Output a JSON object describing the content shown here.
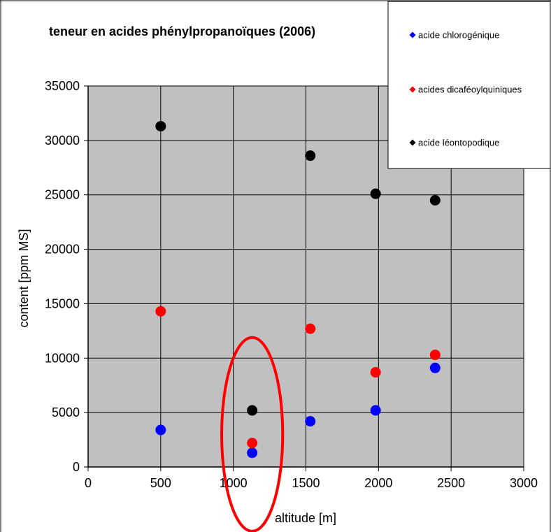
{
  "chart_data": {
    "type": "scatter",
    "title": "teneur en acides phénylpropanoïques  (2006)",
    "xlabel": "altitude  [m]",
    "ylabel": "content  [ppm MS]",
    "xlim": [
      0,
      3000
    ],
    "ylim": [
      0,
      35000
    ],
    "x_ticks": [
      0,
      500,
      1000,
      1500,
      2000,
      2500,
      3000
    ],
    "y_ticks": [
      0,
      5000,
      10000,
      15000,
      20000,
      25000,
      30000,
      35000
    ],
    "grid": true,
    "plot_background": "#c0c0c0",
    "legend_position": "top-right",
    "series": [
      {
        "name": "acide chlorogénique",
        "color": "#0000ff",
        "points": [
          [
            500,
            3400
          ],
          [
            1130,
            1300
          ],
          [
            1530,
            4200
          ],
          [
            1980,
            5200
          ],
          [
            2390,
            9100
          ]
        ]
      },
      {
        "name": "acides dicaféoylquiniques",
        "color": "#ff0000",
        "points": [
          [
            500,
            14300
          ],
          [
            1130,
            2200
          ],
          [
            1530,
            12700
          ],
          [
            1980,
            8700
          ],
          [
            2390,
            10300
          ]
        ]
      },
      {
        "name": "acide léontopodique",
        "color": "#000000",
        "points": [
          [
            500,
            31300
          ],
          [
            1130,
            5200
          ],
          [
            1530,
            28600
          ],
          [
            1980,
            25100
          ],
          [
            2390,
            24500
          ]
        ]
      }
    ],
    "annotations": [
      {
        "type": "ellipse",
        "color": "#ff0000",
        "center": [
          1130,
          3000
        ],
        "radius_x": 210,
        "radius_y": 8900
      }
    ]
  }
}
